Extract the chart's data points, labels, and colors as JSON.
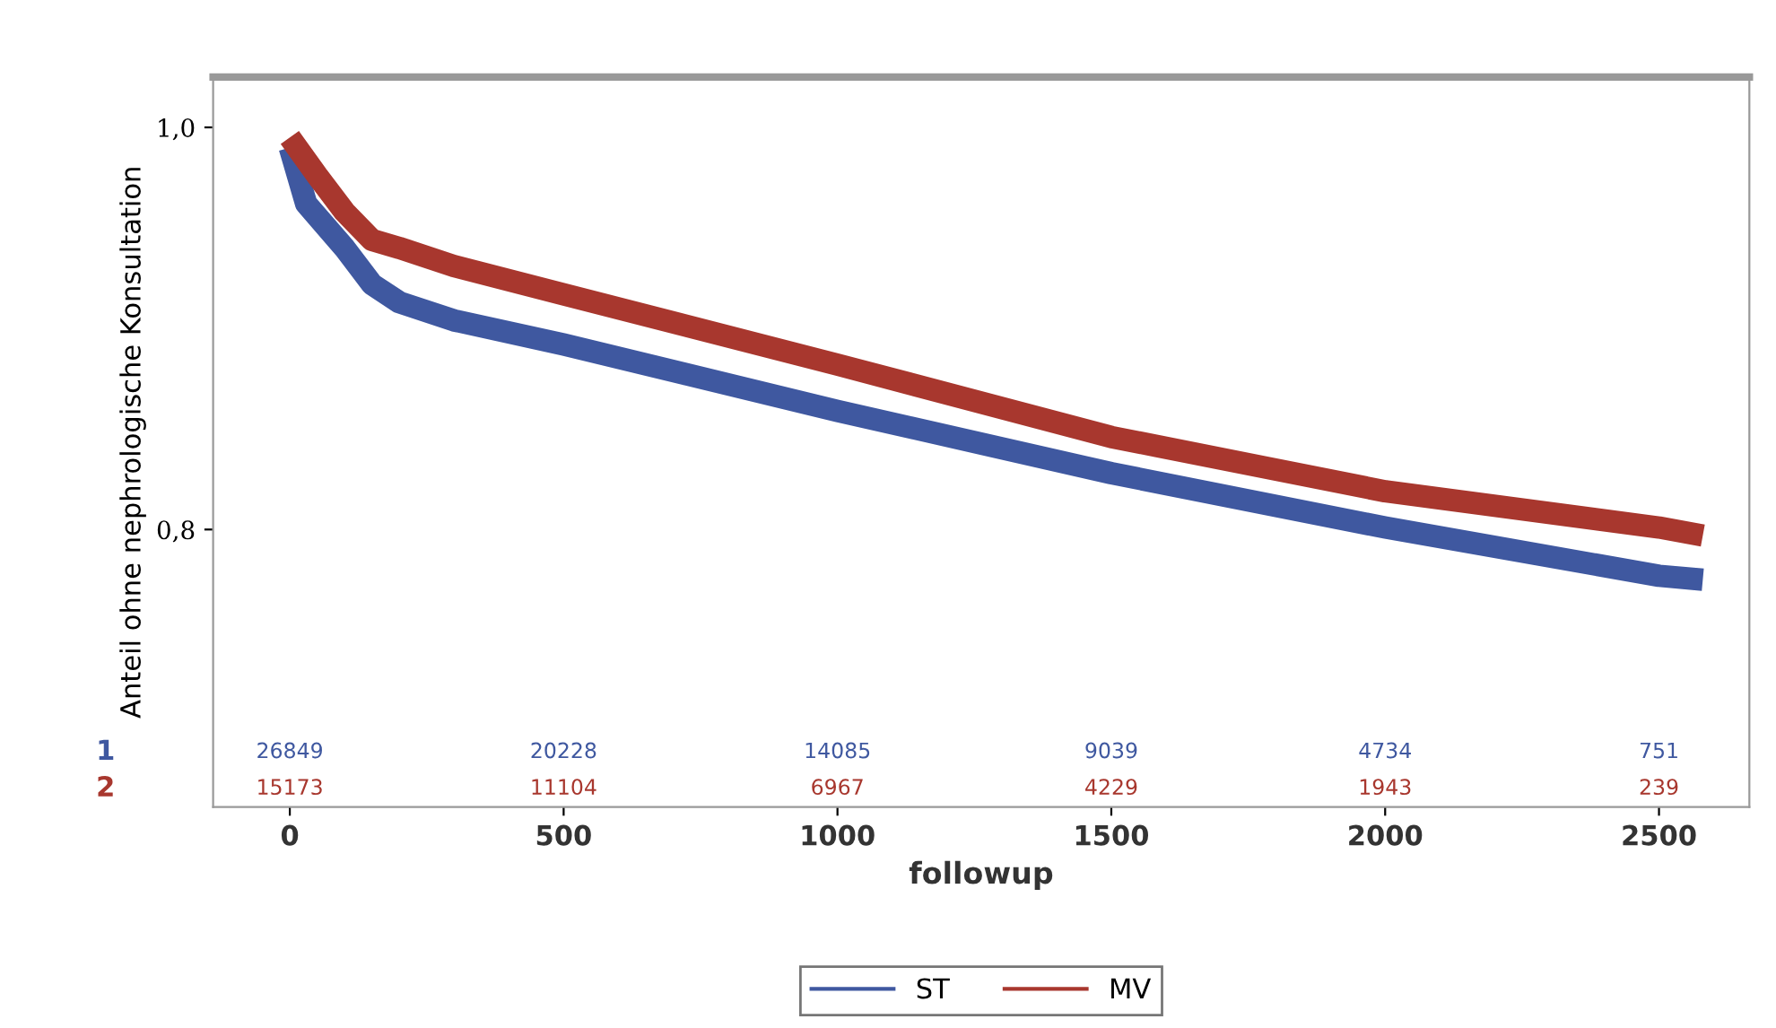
{
  "chart_data": {
    "type": "line",
    "xlabel": "followup",
    "ylabel": "Anteil ohne nephrologische Konsultation",
    "xlim": [
      -140,
      2665
    ],
    "ylim": [
      0.662,
      1.025
    ],
    "xticks": [
      0,
      500,
      1000,
      1500,
      2000,
      2500
    ],
    "yticks": [
      {
        "value": 0.8,
        "label": "0,8"
      },
      {
        "value": 1.0,
        "label": "1,0"
      }
    ],
    "grid": false,
    "legend": "bottom",
    "marker": "none",
    "line_style": "solid",
    "series": [
      {
        "name": "ST",
        "color": "#3f58a0",
        "x": [
          0,
          30,
          100,
          150,
          200,
          300,
          500,
          1000,
          1500,
          2000,
          2500,
          2580
        ],
        "values": [
          0.99,
          0.962,
          0.94,
          0.922,
          0.913,
          0.904,
          0.892,
          0.859,
          0.828,
          0.801,
          0.777,
          0.775
        ]
      },
      {
        "name": "MV",
        "color": "#a8372e",
        "x": [
          0,
          50,
          100,
          150,
          200,
          300,
          500,
          1000,
          1500,
          2000,
          2500,
          2580
        ],
        "values": [
          0.995,
          0.976,
          0.958,
          0.944,
          0.94,
          0.931,
          0.917,
          0.882,
          0.846,
          0.819,
          0.801,
          0.797
        ]
      }
    ],
    "annotations": [
      "1",
      "26849",
      "20228",
      "14085",
      "9039",
      "4734",
      "751",
      "2",
      "15173",
      "11104",
      "6967",
      "4229",
      "1943",
      "239"
    ]
  }
}
